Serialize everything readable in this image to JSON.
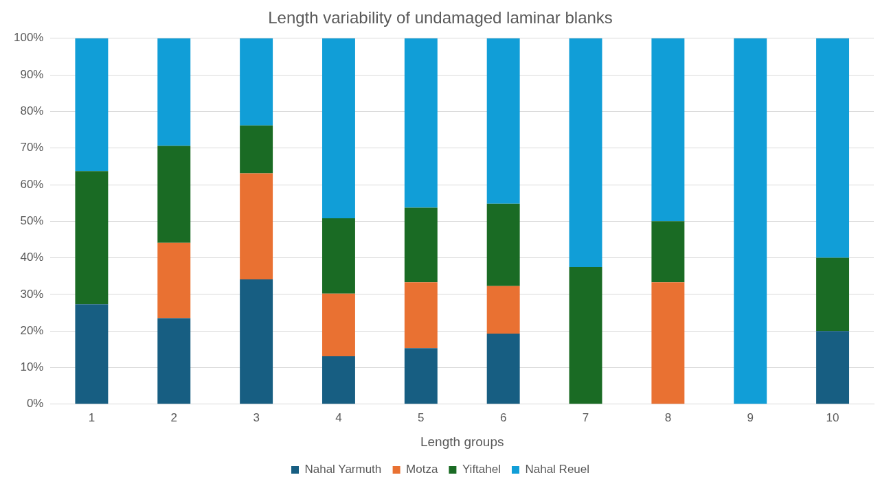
{
  "chart_data": {
    "type": "bar",
    "title": "Length variability of undamaged laminar blanks",
    "xlabel": "Length groups",
    "categories": [
      "1",
      "2",
      "3",
      "4",
      "5",
      "6",
      "7",
      "8",
      "9",
      "10"
    ],
    "stacked": true,
    "series": [
      {
        "name": "Nahal Yarmuth",
        "color": "#175e82",
        "values": [
          27.3,
          23.5,
          34.1,
          13.1,
          15.3,
          19.3,
          0,
          0,
          0,
          20
        ]
      },
      {
        "name": "Motza",
        "color": "#e97132",
        "values": [
          0,
          20.6,
          29.0,
          17.1,
          18.0,
          13.0,
          0,
          33.3,
          0,
          0
        ]
      },
      {
        "name": "Yiftahel",
        "color": "#1a6b24",
        "values": [
          36.4,
          26.5,
          13.1,
          20.6,
          20.4,
          22.5,
          37.5,
          16.7,
          0,
          20
        ]
      },
      {
        "name": "Nahal Reuel",
        "color": "#119ed7",
        "values": [
          36.3,
          29.4,
          23.8,
          49.2,
          46.3,
          45.2,
          62.5,
          50,
          100,
          60
        ]
      }
    ],
    "ylim": [
      0,
      100
    ],
    "yticks": [
      {
        "value": 0,
        "label": "0%"
      },
      {
        "value": 10,
        "label": "10%"
      },
      {
        "value": 20,
        "label": "20%"
      },
      {
        "value": 30,
        "label": "30%"
      },
      {
        "value": 40,
        "label": "40%"
      },
      {
        "value": 50,
        "label": "50%"
      },
      {
        "value": 60,
        "label": "60%"
      },
      {
        "value": 70,
        "label": "70%"
      },
      {
        "value": 80,
        "label": "80%"
      },
      {
        "value": 90,
        "label": "90%"
      },
      {
        "value": 100,
        "label": "100%"
      }
    ],
    "grid": "y",
    "legend": "bottom"
  }
}
